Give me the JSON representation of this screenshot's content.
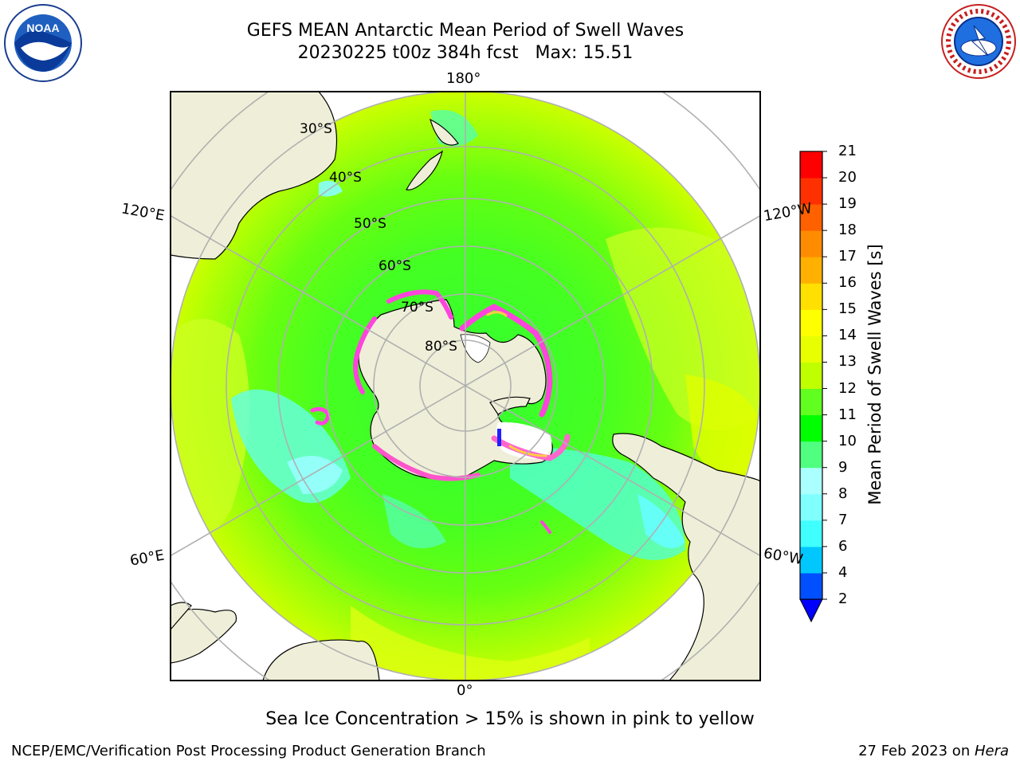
{
  "header": {
    "title_line1": "GEFS MEAN Antarctic Mean Period of Swell Waves",
    "title_line2": "20230225 t00z 384h fcst   Max: 15.51"
  },
  "map": {
    "lon_labels": {
      "top": "180°",
      "bottom": "0°",
      "upper_left": "120°E",
      "upper_right": "120°W",
      "lower_left": "60°E",
      "lower_right": "60°W"
    },
    "lat_labels": [
      "30°S",
      "40°S",
      "50°S",
      "60°S",
      "70°S",
      "80°S"
    ]
  },
  "colorbar": {
    "label": "Mean Period of Swell Waves [s]",
    "ticks": [
      "2",
      "4",
      "6",
      "7",
      "8",
      "9",
      "10",
      "11",
      "12",
      "13",
      "14",
      "15",
      "16",
      "17",
      "18",
      "19",
      "20",
      "21"
    ],
    "colors": [
      "#0050ff",
      "#00c8ff",
      "#40ffff",
      "#80ffff",
      "#aaffff",
      "#50ff80",
      "#00ff00",
      "#60ff20",
      "#c0ff00",
      "#e8ff00",
      "#ffff00",
      "#ffe000",
      "#ffb000",
      "#ff8c00",
      "#ff6000",
      "#ff3000",
      "#ff0000"
    ],
    "extend_color": "#0000ff"
  },
  "subnote": "Sea Ice Concentration > 15% is shown in pink to yellow",
  "footer": {
    "left": "NCEP/EMC/Verification Post Processing Product Generation Branch",
    "right_date": "27 Feb 2023 on ",
    "right_host": "Hera"
  },
  "logos": {
    "noaa_text": "NOAA",
    "nws_text": "NATIONAL WEATHER SERVICE"
  }
}
